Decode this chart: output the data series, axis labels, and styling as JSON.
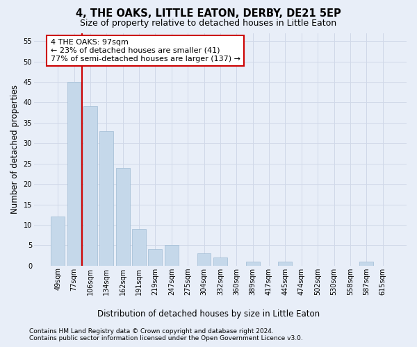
{
  "title": "4, THE OAKS, LITTLE EATON, DERBY, DE21 5EP",
  "subtitle": "Size of property relative to detached houses in Little Eaton",
  "xlabel": "Distribution of detached houses by size in Little Eaton",
  "ylabel": "Number of detached properties",
  "categories": [
    "49sqm",
    "77sqm",
    "106sqm",
    "134sqm",
    "162sqm",
    "191sqm",
    "219sqm",
    "247sqm",
    "275sqm",
    "304sqm",
    "332sqm",
    "360sqm",
    "389sqm",
    "417sqm",
    "445sqm",
    "474sqm",
    "502sqm",
    "530sqm",
    "558sqm",
    "587sqm",
    "615sqm"
  ],
  "values": [
    12,
    45,
    39,
    33,
    24,
    9,
    4,
    5,
    0,
    3,
    2,
    0,
    1,
    0,
    1,
    0,
    0,
    0,
    0,
    1,
    0
  ],
  "bar_color": "#c5d8ea",
  "bar_edge_color": "#a0bcd4",
  "vline_x": 1.5,
  "vline_color": "#cc0000",
  "annotation_line1": "4 THE OAKS: 97sqm",
  "annotation_line2": "← 23% of detached houses are smaller (41)",
  "annotation_line3": "77% of semi-detached houses are larger (137) →",
  "annotation_box_color": "#ffffff",
  "annotation_box_edgecolor": "#cc0000",
  "ylim": [
    0,
    57
  ],
  "yticks": [
    0,
    5,
    10,
    15,
    20,
    25,
    30,
    35,
    40,
    45,
    50,
    55
  ],
  "grid_color": "#d0d8e8",
  "background_color": "#e8eef8",
  "footer_line1": "Contains HM Land Registry data © Crown copyright and database right 2024.",
  "footer_line2": "Contains public sector information licensed under the Open Government Licence v3.0.",
  "title_fontsize": 10.5,
  "subtitle_fontsize": 9,
  "axis_label_fontsize": 8.5,
  "tick_fontsize": 7,
  "annotation_fontsize": 8,
  "footer_fontsize": 6.5
}
